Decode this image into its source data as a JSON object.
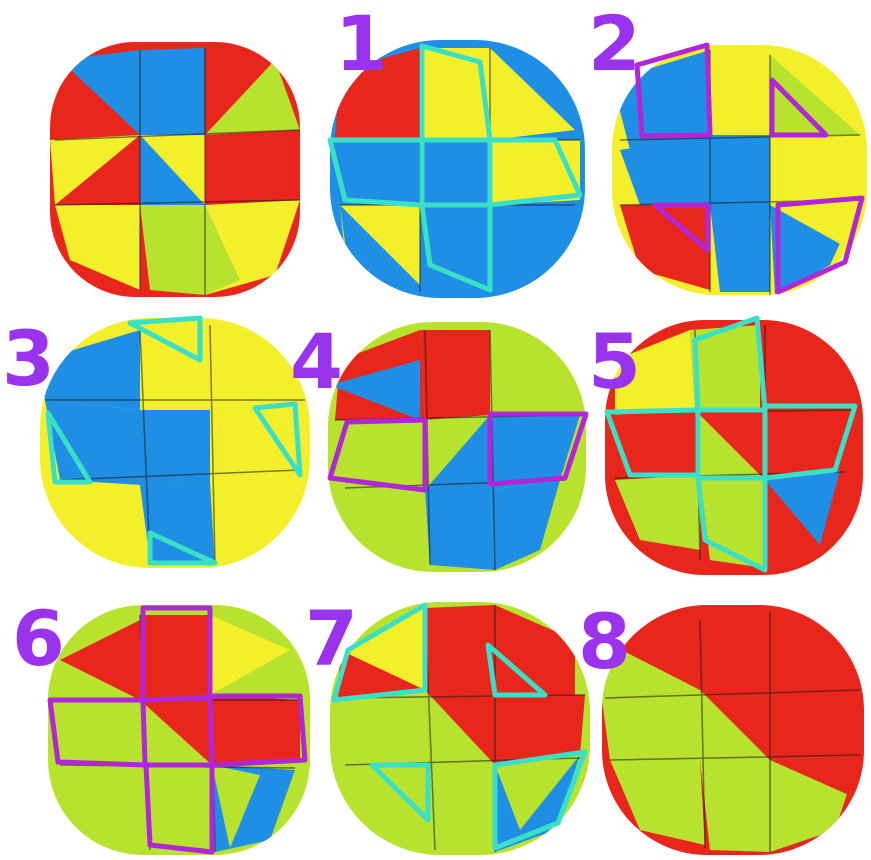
{
  "colors": {
    "red": "#e8261c",
    "blue": "#1f8fe6",
    "yellow": "#f3ef2a",
    "green": "#b7e22e",
    "purple": "#b026d8",
    "cyan": "#3ae0c6",
    "label": "#9a33ee",
    "gap": "#1a1a1a"
  },
  "steps": [
    {
      "id": 0,
      "label": ""
    },
    {
      "id": 1,
      "label": "1"
    },
    {
      "id": 2,
      "label": "2"
    },
    {
      "id": 3,
      "label": "3"
    },
    {
      "id": 4,
      "label": "4"
    },
    {
      "id": 5,
      "label": "5"
    },
    {
      "id": 6,
      "label": "6"
    },
    {
      "id": 7,
      "label": "7"
    },
    {
      "id": 8,
      "label": "8"
    }
  ]
}
